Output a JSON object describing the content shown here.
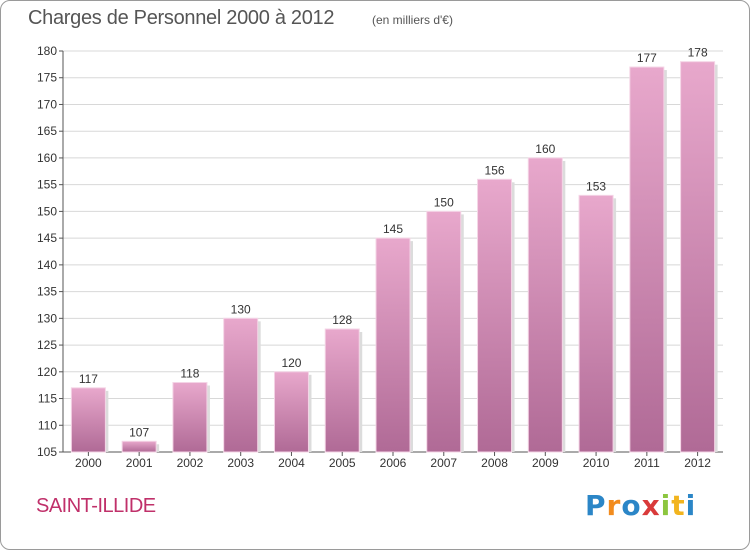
{
  "title": "Charges de Personnel 2000 à 2012",
  "subtitle": "(en milliers d'€)",
  "commune": "SAINT-ILLIDE",
  "logo": {
    "letters": [
      "P",
      "r",
      "o",
      "x",
      "i",
      "t",
      "i"
    ]
  },
  "colors": {
    "bar_top": "#e8a8cc",
    "bar_bottom": "#b06a96",
    "grid": "#d8d8d8",
    "axis": "#555555",
    "commune": "#c0306a"
  },
  "chart_data": {
    "type": "bar",
    "categories": [
      "2000",
      "2001",
      "2002",
      "2003",
      "2004",
      "2005",
      "2006",
      "2007",
      "2008",
      "2009",
      "2010",
      "2011",
      "2012"
    ],
    "values": [
      117,
      107,
      118,
      130,
      120,
      128,
      145,
      150,
      156,
      160,
      153,
      177,
      178
    ],
    "ylim": [
      105,
      180
    ],
    "yticks": [
      105,
      110,
      115,
      120,
      125,
      130,
      135,
      140,
      145,
      150,
      155,
      160,
      165,
      170,
      175,
      180
    ],
    "grid": true,
    "data_labels": true
  }
}
